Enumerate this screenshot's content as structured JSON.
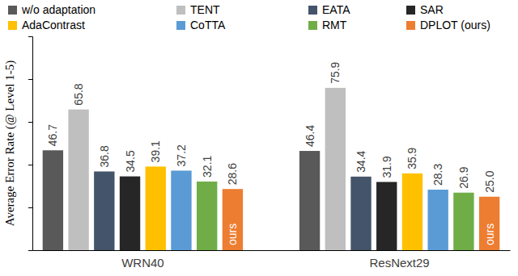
{
  "chart_data": {
    "type": "bar",
    "y_label": "Average Error Rate (@ Level 1-5)",
    "categories": [
      "WRN40",
      "ResNext29"
    ],
    "series": [
      {
        "name": "w/o adaptation",
        "color": "#595959",
        "values": [
          46.7,
          46.4
        ]
      },
      {
        "name": "TENT",
        "color": "#bfbfbf",
        "values": [
          65.8,
          75.9
        ]
      },
      {
        "name": "EATA",
        "color": "#44546a",
        "values": [
          36.8,
          34.4
        ]
      },
      {
        "name": "SAR",
        "color": "#262626",
        "values": [
          34.5,
          31.9
        ]
      },
      {
        "name": "AdaContrast",
        "color": "#ffc000",
        "values": [
          39.1,
          35.9
        ]
      },
      {
        "name": "CoTTA",
        "color": "#5b9bd5",
        "values": [
          37.2,
          28.3
        ]
      },
      {
        "name": "RMT",
        "color": "#70ad47",
        "values": [
          32.1,
          26.9
        ]
      },
      {
        "name": "DPLOT (ours)",
        "color": "#ed7d31",
        "values": [
          28.6,
          25.0
        ],
        "value_labels": [
          "28.6",
          "25.0"
        ],
        "annotation": "ours"
      }
    ],
    "ylim": [
      0,
      100
    ],
    "yticks": [
      0,
      20,
      40,
      60,
      80,
      100
    ],
    "grid": false,
    "data_labels": true,
    "tick_labels": "x",
    "legend": "top"
  }
}
